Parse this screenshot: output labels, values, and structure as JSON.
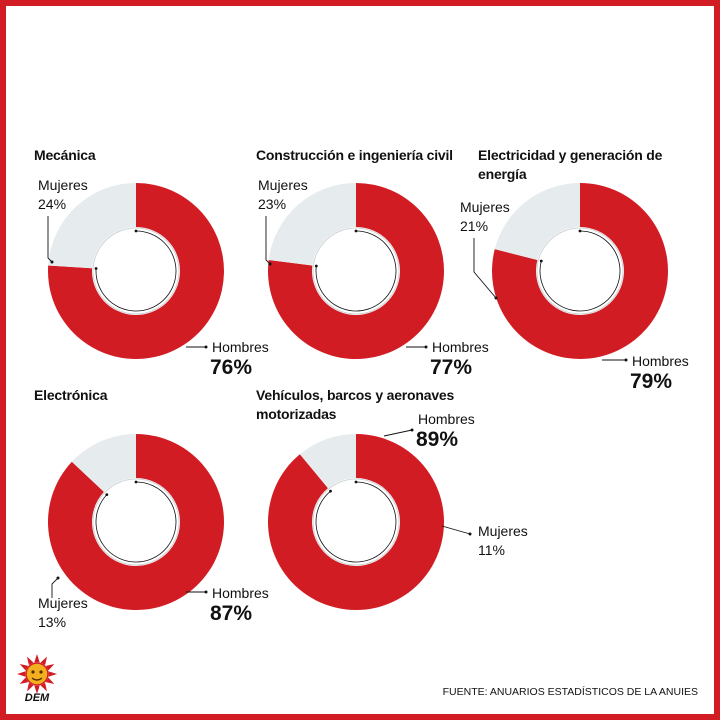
{
  "colors": {
    "accent": "#d21c24",
    "minor_segment": "#e6ebee",
    "border": "#d21c24"
  },
  "source": "FUENTE: ANUARIOS ESTADÍSTICOS DE LA ANUIES",
  "logo_text": "DEM",
  "chart_data": [
    {
      "type": "donut",
      "title": "Mecánica",
      "slices": [
        {
          "label": "Hombres",
          "value": 76,
          "text": "76%"
        },
        {
          "label": "Mujeres",
          "value": 24,
          "text": "24%"
        }
      ]
    },
    {
      "type": "donut",
      "title": "Construcción e ingeniería civil",
      "slices": [
        {
          "label": "Hombres",
          "value": 77,
          "text": "77%"
        },
        {
          "label": "Mujeres",
          "value": 23,
          "text": "23%"
        }
      ]
    },
    {
      "type": "donut",
      "title": "Electricidad y generación de energía",
      "slices": [
        {
          "label": "Hombres",
          "value": 79,
          "text": "79%"
        },
        {
          "label": "Mujeres",
          "value": 21,
          "text": "21%"
        }
      ]
    },
    {
      "type": "donut",
      "title": "Electrónica",
      "slices": [
        {
          "label": "Hombres",
          "value": 87,
          "text": "87%"
        },
        {
          "label": "Mujeres",
          "value": 13,
          "text": "13%"
        }
      ]
    },
    {
      "type": "donut",
      "title": "Vehículos, barcos y aeronaves motorizadas",
      "slices": [
        {
          "label": "Hombres",
          "value": 89,
          "text": "89%"
        },
        {
          "label": "Mujeres",
          "value": 11,
          "text": "11%"
        }
      ]
    }
  ]
}
